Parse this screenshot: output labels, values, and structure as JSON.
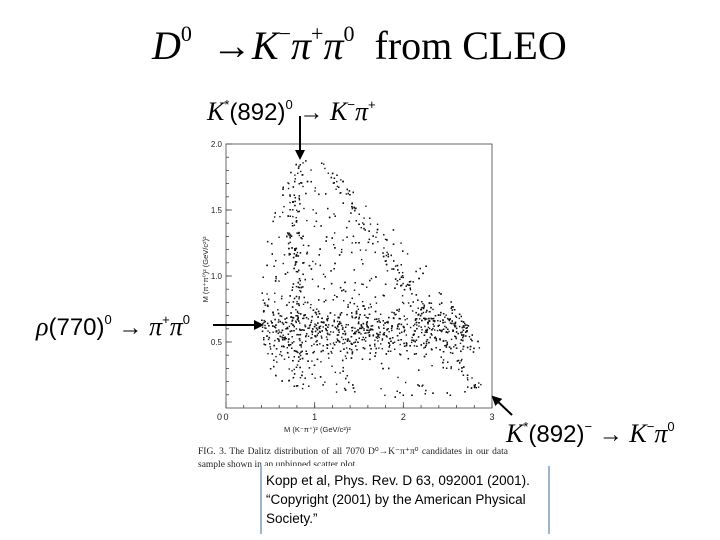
{
  "title": {
    "decay": "D⁰ → K⁻π⁺π⁰",
    "suffix": "from CLEO"
  },
  "annotations": {
    "kstar0": "K*(892)⁰ → K⁻π⁺",
    "rho": "ρ(770)⁰ → π⁺π⁰",
    "kstarminus": "K*(892)⁻ → K⁻π⁰"
  },
  "caption": "FIG. 3. The Dalitz distribution of all 7070 D⁰→K⁻π⁺π⁰ candidates in our data sample shown in an unbinned scatter plot.",
  "citation": "Kopp et al, Phys. Rev. D 63, 092001 (2001). “Copyright (2001) by the American Physical Society.”",
  "chart_data": {
    "type": "scatter",
    "title": "",
    "xlabel": "M (K⁻π⁺)² (GeV/c²)²",
    "ylabel": "M (π⁺π⁰)² (GeV/c²)²",
    "xlim": [
      0,
      3
    ],
    "ylim": [
      0,
      2
    ],
    "x_ticks": [
      "0",
      "1",
      "2",
      "3"
    ],
    "y_ticks": [
      "0.5",
      "1.0",
      "1.5",
      "2.0"
    ],
    "grid": false,
    "n_points": 7070,
    "bands": [
      {
        "name": "K*(892)⁰",
        "axis": "x",
        "value": 0.8
      },
      {
        "name": "ρ(770)⁰",
        "axis": "y",
        "value": 0.6
      },
      {
        "name": "K*(892)⁻",
        "axis": "diagonal",
        "value": 0.8
      }
    ]
  }
}
